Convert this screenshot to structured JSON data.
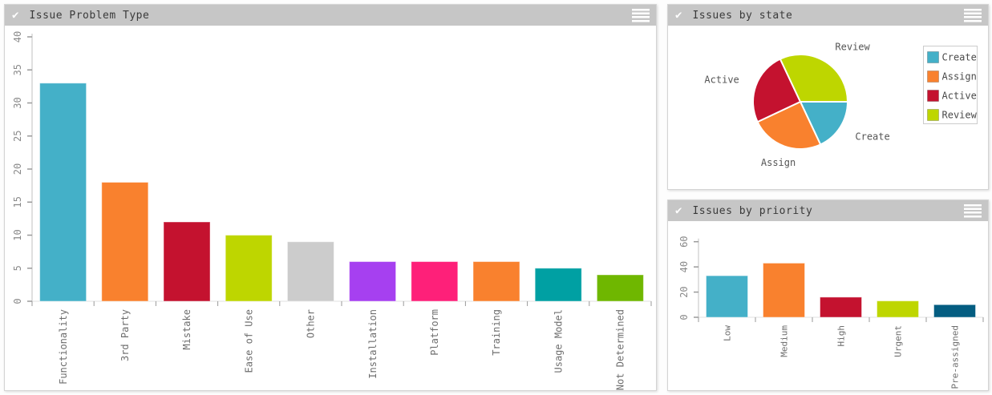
{
  "panels": [
    {
      "title": "Issue Problem Type"
    },
    {
      "title": "Issues by state"
    },
    {
      "title": "Issues by priority"
    }
  ],
  "icons": {
    "header_check": "check-icon",
    "header_menu": "menu-icon"
  },
  "colors": {
    "header_bg": "#c6c6c6",
    "panel_border": "#d4d4d4",
    "axis_line": "#e0e0e0",
    "tick_mark": "#9a9a9a",
    "tick_text": "#8a8a8a",
    "category_text": "#6e6e6e",
    "pie_label_text": "#555555",
    "legend_border": "#cccccc",
    "legend_text": "#4a4a4a"
  },
  "chart_data": [
    {
      "type": "bar",
      "title": "Issue Problem Type",
      "categories": [
        "Functionality",
        "3rd Party",
        "Mistake",
        "Ease of Use",
        "Other",
        "Installation",
        "Platform",
        "Training",
        "Usage Model",
        "Not Determined"
      ],
      "values": [
        33,
        18,
        12,
        10,
        9,
        6,
        6,
        6,
        5,
        4
      ],
      "colors": [
        "#44b0c8",
        "#f9812e",
        "#c4122f",
        "#bed600",
        "#cccccc",
        "#a640f0",
        "#fe2079",
        "#f9812e",
        "#00a0a3",
        "#6fb700"
      ],
      "xlabel": "",
      "ylabel": "",
      "ylim": [
        0,
        40
      ],
      "ytick_step": 5,
      "grid": false,
      "tick_labels_rotated": true
    },
    {
      "type": "pie",
      "title": "Issues by state",
      "categories": [
        "Create",
        "Assign",
        "Active",
        "Review"
      ],
      "values": [
        18,
        25,
        25,
        32
      ],
      "colors": [
        "#44b0c8",
        "#f9812e",
        "#c4122f",
        "#bed600"
      ],
      "start_angle_deg": 0,
      "direction": "clockwise",
      "legend_position": "right",
      "legend_entries": [
        "Create",
        "Assign",
        "Active",
        "Review"
      ]
    },
    {
      "type": "bar",
      "title": "Issues by priority",
      "categories": [
        "Low",
        "Medium",
        "High",
        "Urgent",
        "Pre-assigned"
      ],
      "values": [
        33,
        43,
        16,
        13,
        10
      ],
      "colors": [
        "#44b0c8",
        "#f9812e",
        "#c4122f",
        "#bed600",
        "#045d81"
      ],
      "xlabel": "",
      "ylabel": "",
      "ylim": [
        0,
        60
      ],
      "ytick_step": 20,
      "grid": false,
      "tick_labels_rotated": true
    }
  ]
}
